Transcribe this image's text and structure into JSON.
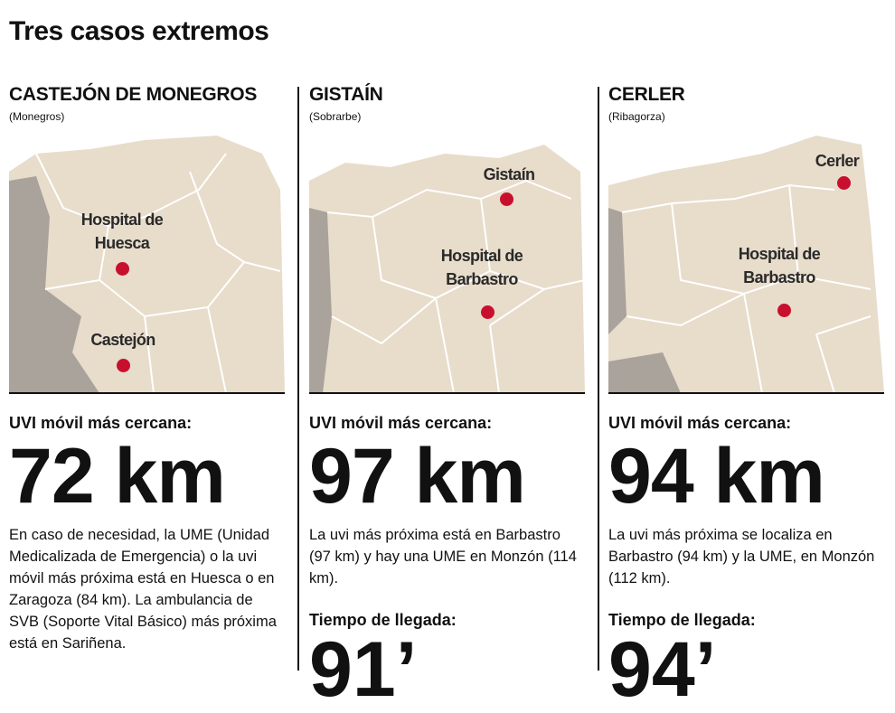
{
  "title": "Tres casos extremos",
  "columns": [
    {
      "name": "CASTEJÓN DE MONEGROS",
      "region": "(Monegros)",
      "map_labels": [
        "Hospital de Huesca",
        "Castejón"
      ],
      "nearest_label": "UVI móvil más cercana:",
      "distance": "72 km",
      "description": "En caso de necesidad, la UME (Unidad Medicalizada de Emergencia) o la uvi móvil más próxima está en Huesca o en Zaragoza (84 km). La ambulancia de SVB (Soporte Vital Básico) más próxima está en Sariñena."
    },
    {
      "name": "GISTAÍN",
      "region": "(Sobrarbe)",
      "map_labels": [
        "Gistaín",
        "Hospital de Barbastro"
      ],
      "nearest_label": "UVI móvil más cercana:",
      "distance": "97 km",
      "description": "La uvi más próxima está en Barbastro (97 km) y hay una UME en Monzón (114 km).",
      "time_label": "Tiempo de llegada:",
      "time": "91’"
    },
    {
      "name": "CERLER",
      "region": "(Ribagorza)",
      "map_labels": [
        "Cerler",
        "Hospital de Barbastro"
      ],
      "nearest_label": "UVI móvil más cercana:",
      "distance": "94 km",
      "description": "La uvi más próxima se localiza en Barbastro (94 km) y la UME, en Monzón (112 km).",
      "time_label": "Tiempo de llegada:",
      "time": "94’"
    }
  ]
}
